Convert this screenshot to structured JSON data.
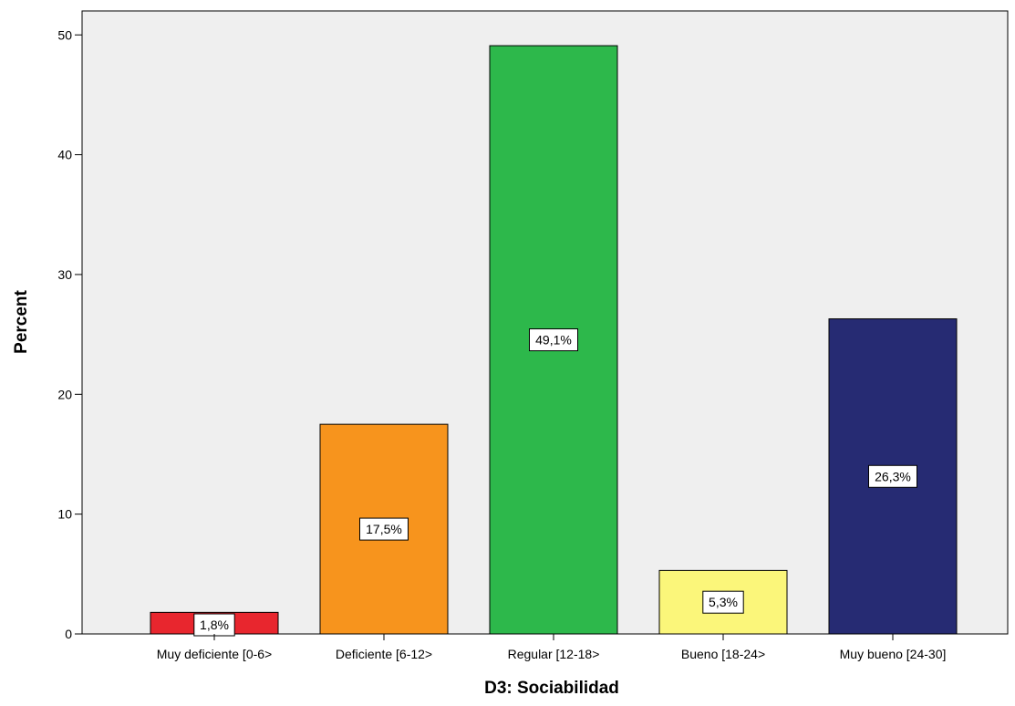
{
  "chart_data": {
    "type": "bar",
    "title": "",
    "xlabel": "D3: Sociabilidad",
    "ylabel": "Percent",
    "categories": [
      "Muy deficiente [0-6>",
      "Deficiente [6-12>",
      "Regular [12-18>",
      "Bueno [18-24>",
      "Muy bueno [24-30]"
    ],
    "values": [
      1.8,
      17.5,
      49.1,
      5.3,
      26.3
    ],
    "data_labels": [
      "1,8%",
      "17,5%",
      "49,1%",
      "5,3%",
      "26,3%"
    ],
    "bar_colors": [
      "#e8262e",
      "#f7941d",
      "#2db84b",
      "#fbf67a",
      "#262b73"
    ],
    "ylim": [
      0,
      52
    ],
    "yticks": [
      0,
      10,
      20,
      30,
      40,
      50
    ],
    "plot_background": "#efefef",
    "grid": false,
    "legend": "none"
  }
}
